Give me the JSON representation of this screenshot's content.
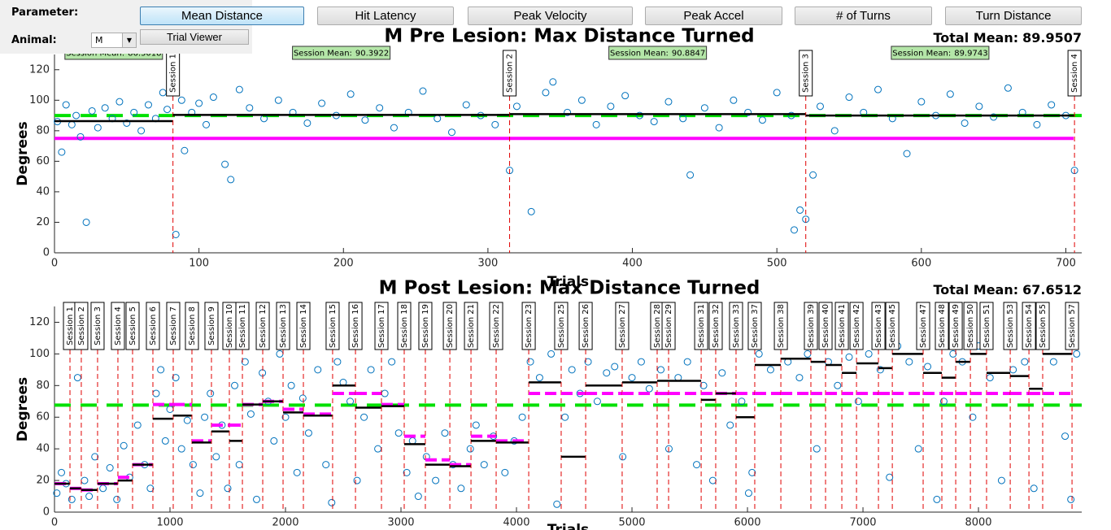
{
  "controls": {
    "parameter_label": "Parameter:",
    "buttons": [
      "Mean Distance",
      "Hit Latency",
      "Peak Velocity",
      "Peak Accel",
      "# of Turns",
      "Turn Distance"
    ],
    "animal_label": "Animal:",
    "animal_value": "M",
    "trial_viewer": "Trial Viewer"
  },
  "chart_data": [
    {
      "type": "scatter",
      "title": "M Pre Lesion: Max Distance Turned",
      "total_mean_label": "Total Mean:",
      "total_mean": 89.9507,
      "session_mean_label": "Session Mean:",
      "xlabel": "Trials",
      "ylabel": "Degrees",
      "xlim": [
        0,
        711
      ],
      "ylim": [
        0,
        130
      ],
      "xticks": [
        0,
        100,
        200,
        300,
        400,
        500,
        600,
        700
      ],
      "yticks": [
        0,
        20,
        40,
        60,
        80,
        100,
        120
      ],
      "color": "#0072bd",
      "threshold": 75,
      "x": [
        2,
        5,
        8,
        12,
        15,
        18,
        22,
        26,
        30,
        35,
        40,
        45,
        50,
        55,
        60,
        65,
        70,
        75,
        78,
        84,
        88,
        90,
        95,
        100,
        105,
        110,
        118,
        122,
        128,
        135,
        145,
        155,
        165,
        175,
        185,
        195,
        205,
        215,
        225,
        235,
        245,
        255,
        265,
        275,
        285,
        295,
        305,
        315,
        320,
        330,
        340,
        345,
        355,
        365,
        375,
        385,
        395,
        405,
        415,
        425,
        435,
        440,
        450,
        460,
        470,
        480,
        490,
        500,
        510,
        512,
        516,
        520,
        525,
        530,
        540,
        550,
        560,
        570,
        580,
        590,
        600,
        610,
        620,
        630,
        640,
        650,
        660,
        670,
        680,
        690,
        700,
        706
      ],
      "values": [
        86,
        66,
        97,
        84,
        90,
        76,
        20,
        93,
        82,
        95,
        88,
        99,
        85,
        92,
        80,
        97,
        88,
        105,
        94,
        12,
        100,
        67,
        92,
        98,
        84,
        102,
        58,
        48,
        107,
        95,
        88,
        100,
        92,
        85,
        98,
        90,
        104,
        87,
        95,
        82,
        92,
        106,
        88,
        79,
        97,
        90,
        84,
        54,
        96,
        27,
        105,
        112,
        92,
        100,
        84,
        96,
        103,
        90,
        86,
        99,
        88,
        51,
        95,
        82,
        100,
        92,
        87,
        105,
        90,
        15,
        28,
        22,
        51,
        96,
        80,
        102,
        92,
        107,
        88,
        65,
        99,
        90,
        104,
        85,
        96,
        89,
        108,
        92,
        84,
        97,
        90,
        54
      ],
      "sessions": [
        {
          "name": "Session 1",
          "end": 82,
          "mean": 86.3018
        },
        {
          "name": "Session 2",
          "end": 315,
          "mean": 90.3922
        },
        {
          "name": "Session 3",
          "end": 520,
          "mean": 90.8847
        },
        {
          "name": "Session 4",
          "end": 706,
          "mean": 89.9743
        }
      ]
    },
    {
      "type": "scatter",
      "title": "M Post Lesion: Max Distance Turned",
      "total_mean_label": "Total Mean:",
      "total_mean": 67.6512,
      "xlabel": "Trials",
      "ylabel": "Degrees",
      "xlim": [
        0,
        8894
      ],
      "ylim": [
        0,
        130
      ],
      "xticks": [
        0,
        1000,
        2000,
        3000,
        4000,
        5000,
        6000,
        7000,
        8000
      ],
      "yticks": [
        0,
        20,
        40,
        60,
        80,
        100,
        120
      ],
      "color": "#0072bd",
      "x": [
        20,
        60,
        100,
        150,
        200,
        260,
        300,
        350,
        420,
        480,
        540,
        600,
        650,
        720,
        780,
        830,
        880,
        920,
        960,
        1000,
        1050,
        1100,
        1150,
        1200,
        1260,
        1300,
        1350,
        1400,
        1450,
        1500,
        1560,
        1600,
        1650,
        1700,
        1750,
        1800,
        1850,
        1900,
        1950,
        2000,
        2050,
        2100,
        2150,
        2200,
        2280,
        2350,
        2400,
        2450,
        2500,
        2560,
        2620,
        2680,
        2740,
        2800,
        2860,
        2920,
        2980,
        3050,
        3100,
        3150,
        3220,
        3300,
        3380,
        3450,
        3520,
        3600,
        3650,
        3720,
        3800,
        3900,
        3980,
        4050,
        4120,
        4200,
        4300,
        4350,
        4420,
        4480,
        4550,
        4620,
        4700,
        4780,
        4850,
        4920,
        5000,
        5080,
        5150,
        5250,
        5320,
        5400,
        5480,
        5560,
        5620,
        5700,
        5780,
        5850,
        5950,
        6010,
        6040,
        6100,
        6200,
        6280,
        6350,
        6450,
        6520,
        6600,
        6700,
        6780,
        6880,
        6960,
        7050,
        7150,
        7230,
        7300,
        7400,
        7480,
        7560,
        7640,
        7700,
        7780,
        7860,
        7950,
        8000,
        8100,
        8200,
        8300,
        8400,
        8480,
        8550,
        8650,
        8750,
        8800,
        8850
      ],
      "values": [
        12,
        25,
        18,
        8,
        85,
        20,
        10,
        35,
        15,
        28,
        8,
        42,
        22,
        55,
        30,
        15,
        75,
        90,
        45,
        65,
        85,
        40,
        58,
        30,
        12,
        60,
        75,
        35,
        55,
        15,
        80,
        30,
        95,
        62,
        8,
        88,
        70,
        45,
        100,
        60,
        80,
        25,
        72,
        50,
        90,
        30,
        6,
        95,
        82,
        70,
        20,
        60,
        90,
        40,
        75,
        95,
        50,
        25,
        45,
        10,
        35,
        20,
        50,
        30,
        15,
        40,
        55,
        30,
        48,
        25,
        45,
        60,
        95,
        85,
        100,
        5,
        60,
        90,
        75,
        95,
        70,
        88,
        92,
        35,
        85,
        95,
        78,
        90,
        40,
        85,
        95,
        30,
        80,
        20,
        88,
        55,
        70,
        12,
        25,
        100,
        90,
        105,
        95,
        85,
        100,
        40,
        95,
        80,
        98,
        70,
        100,
        90,
        22,
        105,
        95,
        40,
        92,
        8,
        70,
        100,
        95,
        60,
        105,
        85,
        20,
        90,
        95,
        15,
        108,
        95,
        48,
        8,
        100
      ],
      "sessions": [
        {
          "name": "Session 1",
          "end": 134,
          "mean": 18,
          "threshold": 18
        },
        {
          "name": "Session 2",
          "end": 232,
          "mean": 15,
          "threshold": 15
        },
        {
          "name": "Session 3",
          "end": 373,
          "mean": 14,
          "threshold": 14
        },
        {
          "name": "Session 4",
          "end": 549,
          "mean": 18,
          "threshold": 18
        },
        {
          "name": "Session 5",
          "end": 676,
          "mean": 20,
          "threshold": 22
        },
        {
          "name": "Session 6",
          "end": 852,
          "mean": 30,
          "threshold": 30
        },
        {
          "name": "Session 7",
          "end": 1028,
          "mean": 59,
          "threshold": 68
        },
        {
          "name": "Session 8",
          "end": 1190,
          "mean": 61,
          "threshold": 68
        },
        {
          "name": "Session 9",
          "end": 1359,
          "mean": 44,
          "threshold": 45
        },
        {
          "name": "Session 10",
          "end": 1514,
          "mean": 51,
          "threshold": 55
        },
        {
          "name": "Session 11",
          "end": 1627,
          "mean": 45,
          "threshold": 55
        },
        {
          "name": "Session 12",
          "end": 1803,
          "mean": 68,
          "threshold": 68
        },
        {
          "name": "Session 13",
          "end": 1979,
          "mean": 70,
          "threshold": 70
        },
        {
          "name": "Session 14",
          "end": 2155,
          "mean": 63,
          "threshold": 65
        },
        {
          "name": "Session 15",
          "end": 2408,
          "mean": 61,
          "threshold": 62
        },
        {
          "name": "Session 16",
          "end": 2606,
          "mean": 80,
          "threshold": 75
        },
        {
          "name": "Session 17",
          "end": 2831,
          "mean": 66,
          "threshold": 75
        },
        {
          "name": "Session 18",
          "end": 3028,
          "mean": 67,
          "threshold": 68
        },
        {
          "name": "Session 19",
          "end": 3211,
          "mean": 43,
          "threshold": 48
        },
        {
          "name": "Session 20",
          "end": 3423,
          "mean": 30,
          "threshold": 33
        },
        {
          "name": "Session 21",
          "end": 3606,
          "mean": 29,
          "threshold": 30
        },
        {
          "name": "Session 22",
          "end": 3824,
          "mean": 45,
          "threshold": 48
        },
        {
          "name": "Session 23",
          "end": 4106,
          "mean": 44,
          "threshold": 45
        },
        {
          "name": "Session 25",
          "end": 4387,
          "mean": 82,
          "threshold": 75
        },
        {
          "name": "Session 26",
          "end": 4599,
          "mean": 35,
          "threshold": 75
        },
        {
          "name": "Session 27",
          "end": 4915,
          "mean": 80,
          "threshold": 75
        },
        {
          "name": "Session 28",
          "end": 5218,
          "mean": 82,
          "threshold": 75
        },
        {
          "name": "Session 29",
          "end": 5317,
          "mean": 83,
          "threshold": 75
        },
        {
          "name": "Session 31",
          "end": 5599,
          "mean": 83,
          "threshold": 75
        },
        {
          "name": "Session 32",
          "end": 5725,
          "mean": 71,
          "threshold": 75
        },
        {
          "name": "Session 33",
          "end": 5901,
          "mean": 75,
          "threshold": 75
        },
        {
          "name": "Session 37",
          "end": 6063,
          "mean": 60,
          "threshold": 75
        },
        {
          "name": "Session 38",
          "end": 6289,
          "mean": 93,
          "threshold": 75
        },
        {
          "name": "Session 39",
          "end": 6549,
          "mean": 97,
          "threshold": 75
        },
        {
          "name": "Session 40",
          "end": 6676,
          "mean": 95,
          "threshold": 75
        },
        {
          "name": "Session 41",
          "end": 6817,
          "mean": 93,
          "threshold": 75
        },
        {
          "name": "Session 42",
          "end": 6944,
          "mean": 88,
          "threshold": 75
        },
        {
          "name": "Session 43",
          "end": 7134,
          "mean": 94,
          "threshold": 75
        },
        {
          "name": "Session 45",
          "end": 7254,
          "mean": 91,
          "threshold": 75
        },
        {
          "name": "Session 47",
          "end": 7521,
          "mean": 100,
          "threshold": 75
        },
        {
          "name": "Session 48",
          "end": 7683,
          "mean": 88,
          "threshold": 75
        },
        {
          "name": "Session 49",
          "end": 7803,
          "mean": 85,
          "threshold": 75
        },
        {
          "name": "Session 50",
          "end": 7930,
          "mean": 95,
          "threshold": 75
        },
        {
          "name": "Session 51",
          "end": 8070,
          "mean": 100,
          "threshold": 75
        },
        {
          "name": "Session 53",
          "end": 8275,
          "mean": 88,
          "threshold": 75
        },
        {
          "name": "Session 54",
          "end": 8437,
          "mean": 86,
          "threshold": 75
        },
        {
          "name": "Session 55",
          "end": 8556,
          "mean": 78,
          "threshold": 75
        },
        {
          "name": "Session 57",
          "end": 8810,
          "mean": 100,
          "threshold": 75
        }
      ]
    }
  ]
}
